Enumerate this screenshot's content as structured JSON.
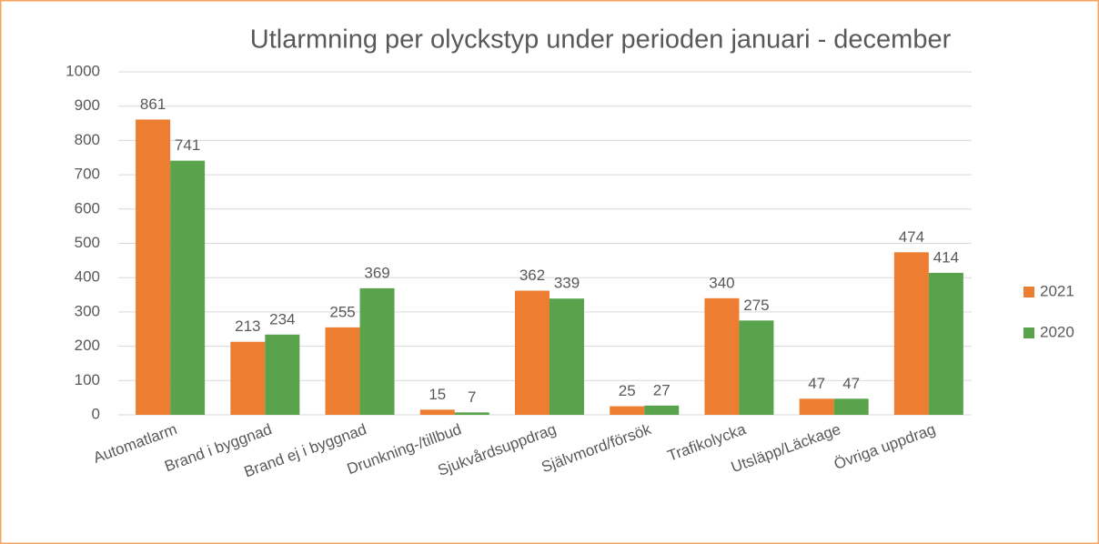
{
  "chart_data": {
    "type": "bar",
    "title": "Utlarmning per olyckstyp under perioden januari - december",
    "categories": [
      "Automatlarm",
      "Brand i byggnad",
      "Brand ej i byggnad",
      "Drunkning-/tillbud",
      "Sjukvårdsuppdrag",
      "Självmord/försök",
      "Trafikolycka",
      "Utsläpp/Läckage",
      "Övriga uppdrag"
    ],
    "series": [
      {
        "name": "2021",
        "color": "#ed7d31",
        "values": [
          861,
          213,
          255,
          15,
          362,
          25,
          340,
          47,
          474
        ]
      },
      {
        "name": "2020",
        "color": "#58a34b",
        "values": [
          741,
          234,
          369,
          7,
          339,
          27,
          275,
          47,
          414
        ]
      }
    ],
    "ylim": [
      0,
      1000
    ],
    "yticks": [
      0,
      100,
      200,
      300,
      400,
      500,
      600,
      700,
      800,
      900,
      1000
    ],
    "grid": true,
    "legend": "right",
    "data_labels": true
  }
}
